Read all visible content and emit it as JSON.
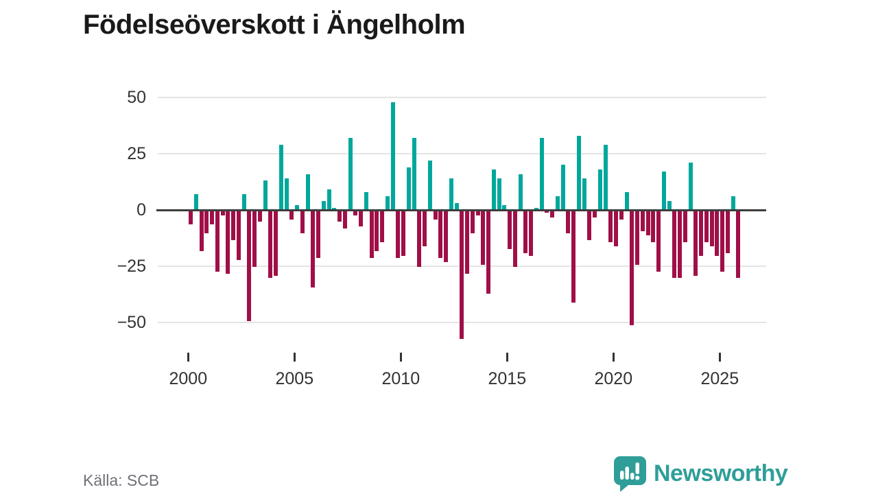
{
  "title": "Födelseöverskott i Ängelholm",
  "source": "Källa: SCB",
  "logo": {
    "wordmark": "Newsworthy",
    "icon": "speech-bubble-bar-chart-icon"
  },
  "colors": {
    "positive_bar": "#00a79c",
    "negative_bar": "#a00f47",
    "zero_line": "#3d3d3d",
    "gridline": "#e4e4e4",
    "axis_text": "#333333",
    "title_text": "#1a1a1a",
    "source_text": "#6f6f78",
    "logo_teal": "#2f9e99"
  },
  "chart_data": {
    "type": "bar",
    "title": "Födelseöverskott i Ängelholm",
    "frequency": "quarterly",
    "start_year": 2000,
    "start_quarter": 1,
    "values": [
      -6,
      7,
      -18,
      -10,
      -6,
      -27,
      -2,
      -28,
      -13,
      -22,
      7,
      -49,
      -25,
      -5,
      13,
      -30,
      -29,
      29,
      14,
      -4,
      2,
      -10,
      16,
      -34,
      -21,
      4,
      9,
      1,
      -5,
      -8,
      32,
      -2,
      -7,
      8,
      -21,
      -18,
      -14,
      6,
      48,
      -21,
      -20,
      19,
      32,
      -25,
      -16,
      22,
      -4,
      -21,
      -23,
      14,
      3,
      -57,
      -28,
      -10,
      -2,
      -24,
      -37,
      18,
      14,
      2,
      -17,
      -25,
      16,
      -19,
      -20,
      1,
      32,
      -1,
      -3,
      6,
      20,
      -10,
      -41,
      33,
      14,
      -13,
      -3,
      18,
      29,
      -14,
      -16,
      -4,
      8,
      -51,
      -24,
      -9,
      -11,
      -14,
      -27,
      17,
      4,
      -30,
      -30,
      -14,
      21,
      -29,
      -20,
      -14,
      -16,
      -20,
      -27,
      -19,
      6,
      -30
    ],
    "y_ticks": [
      {
        "value": 50,
        "label": "50"
      },
      {
        "value": 25,
        "label": "25"
      },
      {
        "value": 0,
        "label": "0"
      },
      {
        "value": -25,
        "label": "−25"
      },
      {
        "value": -50,
        "label": "−50"
      }
    ],
    "x_ticks": [
      {
        "year": 2000,
        "label": "2000"
      },
      {
        "year": 2005,
        "label": "2005"
      },
      {
        "year": 2010,
        "label": "2010"
      },
      {
        "year": 2015,
        "label": "2015"
      },
      {
        "year": 2020,
        "label": "2020"
      },
      {
        "year": 2025,
        "label": "2025"
      }
    ],
    "ylim": [
      -60,
      55
    ],
    "grid": true,
    "legend": "none",
    "positive_color": "#00a79c",
    "negative_color": "#a00f47"
  }
}
